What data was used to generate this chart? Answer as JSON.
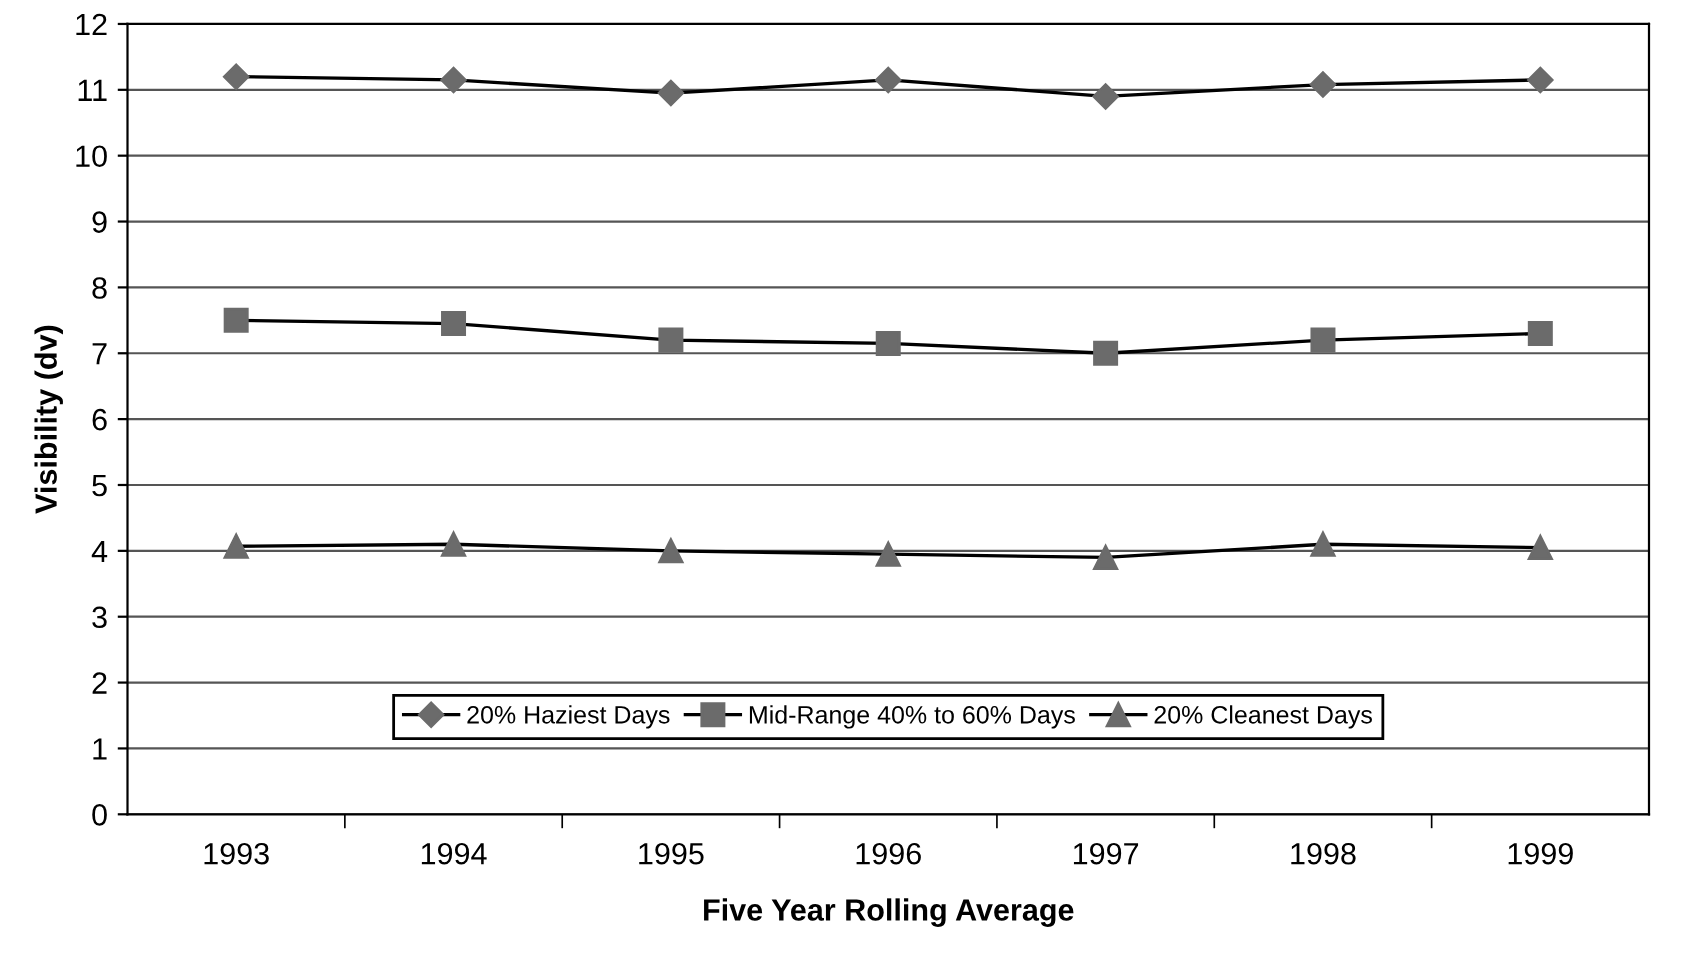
{
  "chart_data": {
    "type": "line",
    "xlabel": "Five Year Rolling Average",
    "ylabel": "Visibility (dv)",
    "categories": [
      "1993",
      "1994",
      "1995",
      "1996",
      "1997",
      "1998",
      "1999"
    ],
    "series": [
      {
        "name": "20% Haziest Days",
        "color": "#6b6b6b",
        "marker": "diamond",
        "values": [
          11.2,
          11.15,
          10.95,
          11.15,
          10.9,
          11.08,
          11.15
        ]
      },
      {
        "name": "Mid-Range 40% to 60% Days",
        "color": "#6b6b6b",
        "marker": "square",
        "values": [
          7.5,
          7.45,
          7.2,
          7.15,
          7.0,
          7.2,
          7.3
        ]
      },
      {
        "name": "20% Cleanest Days",
        "color": "#6b6b6b",
        "marker": "triangle",
        "values": [
          4.07,
          4.1,
          4.0,
          3.95,
          3.9,
          4.1,
          4.05
        ]
      }
    ],
    "ylim": [
      0,
      12
    ],
    "yticks": [
      0,
      1,
      2,
      3,
      4,
      5,
      6,
      7,
      8,
      9,
      10,
      11,
      12
    ],
    "grid": "y",
    "legend": "bottom",
    "line_style": "solid"
  }
}
